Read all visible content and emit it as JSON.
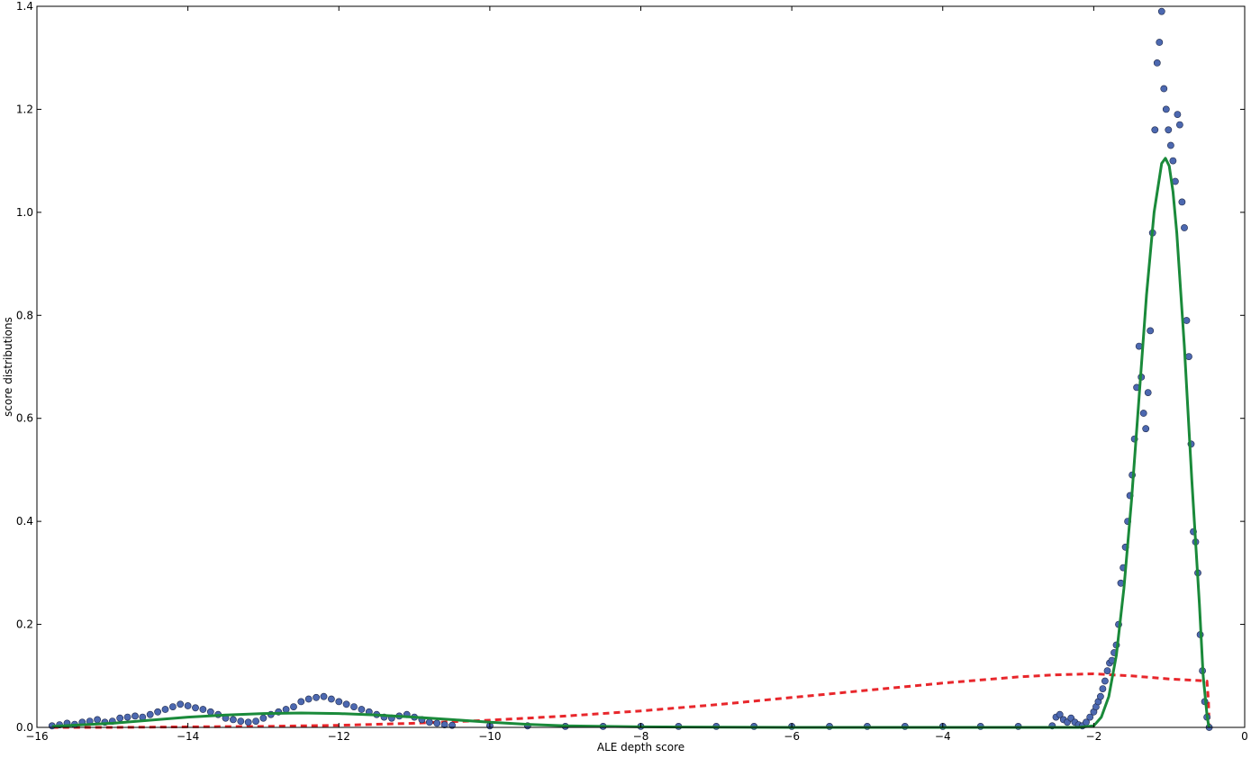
{
  "chart_data": {
    "type": "scatter",
    "title": "",
    "xlabel": "ALE depth score",
    "ylabel": "score distributions",
    "xlim": [
      -16,
      0
    ],
    "ylim": [
      0,
      1.4
    ],
    "grid": false,
    "legend": "none",
    "xticks": [
      -16,
      -14,
      -12,
      -10,
      -8,
      -6,
      -4,
      -2,
      0
    ],
    "xtick_labels": [
      "−16",
      "−14",
      "−12",
      "−10",
      "−8",
      "−6",
      "−4",
      "−2",
      "0"
    ],
    "yticks": [
      0.0,
      0.2,
      0.4,
      0.6,
      0.8,
      1.0,
      1.2,
      1.4
    ],
    "ytick_labels": [
      "0.0",
      "0.2",
      "0.4",
      "0.6",
      "0.8",
      "1.0",
      "1.2",
      "1.4"
    ],
    "colors": {
      "points": "#4c68b0",
      "green_curve": "#1a8a3a",
      "red_curve": "#e8262b"
    },
    "series": [
      {
        "kind": "scatter",
        "x": [
          -15.8,
          -15.7,
          -15.6,
          -15.5,
          -15.4,
          -15.3,
          -15.2,
          -15.1,
          -15.0,
          -14.9,
          -14.8,
          -14.7,
          -14.6,
          -14.5,
          -14.4,
          -14.3,
          -14.2,
          -14.1,
          -14.0,
          -13.9,
          -13.8,
          -13.7,
          -13.6,
          -13.5,
          -13.4,
          -13.3,
          -13.2,
          -13.1,
          -13.0,
          -12.9,
          -12.8,
          -12.7,
          -12.6,
          -12.5,
          -12.4,
          -12.3,
          -12.2,
          -12.1,
          -12.0,
          -11.9,
          -11.8,
          -11.7,
          -11.6,
          -11.5,
          -11.4,
          -11.3,
          -11.2,
          -11.1,
          -11.0,
          -10.9,
          -10.8,
          -10.7,
          -10.6,
          -10.5,
          -10.0,
          -9.5,
          -9.0,
          -8.5,
          -8.0,
          -7.5,
          -7.0,
          -6.5,
          -6.0,
          -5.5,
          -5.0,
          -4.5,
          -4.0,
          -3.5,
          -3.0,
          -2.55,
          -2.5,
          -2.45,
          -2.4,
          -2.35,
          -2.3,
          -2.25,
          -2.2,
          -2.15,
          -2.1,
          -2.05,
          -2.0,
          -1.97,
          -1.94,
          -1.91,
          -1.88,
          -1.85,
          -1.82,
          -1.79,
          -1.76,
          -1.73,
          -1.7,
          -1.67,
          -1.64,
          -1.61,
          -1.58,
          -1.55,
          -1.52,
          -1.49,
          -1.46,
          -1.43,
          -1.4,
          -1.37,
          -1.34,
          -1.31,
          -1.28,
          -1.25,
          -1.22,
          -1.19,
          -1.16,
          -1.13,
          -1.1,
          -1.07,
          -1.04,
          -1.01,
          -0.98,
          -0.95,
          -0.92,
          -0.89,
          -0.86,
          -0.83,
          -0.8,
          -0.77,
          -0.74,
          -0.71,
          -0.68,
          -0.65,
          -0.62,
          -0.59,
          -0.56,
          -0.53,
          -0.5,
          -0.47
        ],
        "y": [
          0.003,
          0.005,
          0.008,
          0.006,
          0.01,
          0.012,
          0.015,
          0.01,
          0.012,
          0.018,
          0.02,
          0.022,
          0.02,
          0.025,
          0.03,
          0.035,
          0.04,
          0.045,
          0.042,
          0.038,
          0.035,
          0.03,
          0.025,
          0.018,
          0.015,
          0.012,
          0.01,
          0.012,
          0.018,
          0.025,
          0.03,
          0.035,
          0.04,
          0.05,
          0.055,
          0.058,
          0.06,
          0.055,
          0.05,
          0.045,
          0.04,
          0.035,
          0.03,
          0.025,
          0.02,
          0.018,
          0.022,
          0.025,
          0.02,
          0.015,
          0.01,
          0.008,
          0.005,
          0.004,
          0.003,
          0.003,
          0.002,
          0.002,
          0.002,
          0.002,
          0.002,
          0.002,
          0.002,
          0.002,
          0.002,
          0.002,
          0.002,
          0.002,
          0.002,
          0.003,
          0.02,
          0.025,
          0.015,
          0.01,
          0.018,
          0.01,
          0.005,
          0.003,
          0.01,
          0.02,
          0.03,
          0.04,
          0.05,
          0.06,
          0.075,
          0.09,
          0.11,
          0.125,
          0.13,
          0.145,
          0.16,
          0.2,
          0.28,
          0.31,
          0.35,
          0.4,
          0.45,
          0.49,
          0.56,
          0.66,
          0.74,
          0.68,
          0.61,
          0.58,
          0.65,
          0.77,
          0.96,
          1.16,
          1.29,
          1.33,
          1.39,
          1.24,
          1.2,
          1.16,
          1.13,
          1.1,
          1.06,
          1.19,
          1.17,
          1.02,
          0.97,
          0.79,
          0.72,
          0.55,
          0.38,
          0.36,
          0.3,
          0.18,
          0.11,
          0.05,
          0.02,
          0.0
        ]
      },
      {
        "kind": "line",
        "style": "solid",
        "x": [
          -15.8,
          -15.0,
          -14.5,
          -14.0,
          -13.5,
          -13.0,
          -12.5,
          -12.0,
          -11.5,
          -11.0,
          -10.5,
          -10.0,
          -9.5,
          -9.0,
          -8.0,
          -6.0,
          -4.0,
          -2.5,
          -2.2,
          -2.0,
          -1.9,
          -1.8,
          -1.7,
          -1.6,
          -1.5,
          -1.4,
          -1.3,
          -1.2,
          -1.1,
          -1.05,
          -1.0,
          -0.95,
          -0.9,
          -0.8,
          -0.7,
          -0.6,
          -0.55,
          -0.5,
          -0.48,
          -0.47
        ],
        "y": [
          0.002,
          0.008,
          0.014,
          0.02,
          0.024,
          0.027,
          0.028,
          0.027,
          0.024,
          0.02,
          0.015,
          0.01,
          0.006,
          0.003,
          0.001,
          0.0,
          0.0,
          0.0,
          0.0,
          0.003,
          0.02,
          0.06,
          0.14,
          0.27,
          0.44,
          0.64,
          0.84,
          1.0,
          1.095,
          1.105,
          1.09,
          1.04,
          0.96,
          0.74,
          0.48,
          0.24,
          0.1,
          0.025,
          0.005,
          0.0
        ]
      },
      {
        "kind": "line",
        "style": "dashed",
        "x": [
          -15.8,
          -15.0,
          -14.0,
          -13.0,
          -12.0,
          -11.0,
          -10.0,
          -9.0,
          -8.0,
          -7.0,
          -6.0,
          -5.0,
          -4.0,
          -3.0,
          -2.5,
          -2.0,
          -1.5,
          -1.0,
          -0.5,
          -0.48,
          -0.47
        ],
        "y": [
          0.0,
          0.0,
          0.001,
          0.002,
          0.004,
          0.008,
          0.014,
          0.022,
          0.032,
          0.044,
          0.058,
          0.072,
          0.086,
          0.098,
          0.102,
          0.104,
          0.1,
          0.094,
          0.09,
          0.05,
          0.0
        ]
      }
    ]
  }
}
